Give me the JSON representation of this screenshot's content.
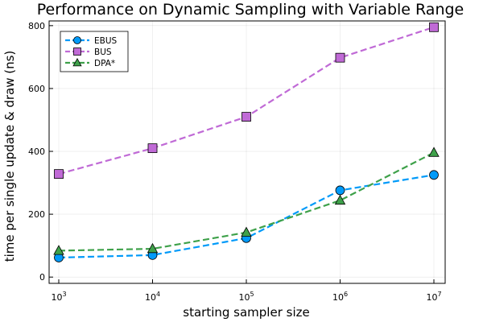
{
  "chart_data": {
    "type": "line",
    "title": "Performance on Dynamic Sampling with Variable Range",
    "xlabel": "starting sampler size",
    "ylabel": "time per single update & draw (ns)",
    "x_scale": "log10",
    "x": [
      1000,
      10000,
      100000,
      1000000,
      10000000
    ],
    "x_ticks": [
      {
        "base": "10",
        "exp": "3"
      },
      {
        "base": "10",
        "exp": "4"
      },
      {
        "base": "10",
        "exp": "5"
      },
      {
        "base": "10",
        "exp": "6"
      },
      {
        "base": "10",
        "exp": "7"
      }
    ],
    "y_ticks": [
      "0",
      "200",
      "400",
      "600",
      "800"
    ],
    "ylim": [
      -20,
      815
    ],
    "grid": true,
    "legend_position": "top-left",
    "series": [
      {
        "name": "EBUS",
        "values": [
          62,
          70,
          124,
          276,
          325
        ],
        "color": "#009af9",
        "marker": "circle"
      },
      {
        "name": "BUS",
        "values": [
          328,
          410,
          510,
          698,
          795
        ],
        "color": "#c06ad6",
        "marker": "square"
      },
      {
        "name": "DPA*",
        "values": [
          84,
          90,
          142,
          244,
          396
        ],
        "color": "#3ea14a",
        "marker": "triangle"
      }
    ]
  }
}
